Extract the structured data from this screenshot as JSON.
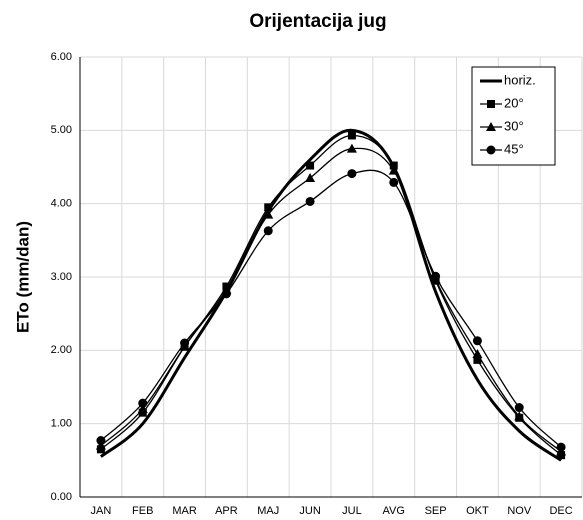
{
  "chart_data": {
    "type": "line",
    "title": "Orijentacija jug",
    "y_label": "ETo (mm/dan)",
    "categories": [
      "JAN",
      "FEB",
      "MAR",
      "APR",
      "MAJ",
      "JUN",
      "JUL",
      "AVG",
      "SEP",
      "OKT",
      "NOV",
      "DEC"
    ],
    "series": [
      {
        "name": "horiz.",
        "color": "#000000",
        "marker": "none",
        "values": [
          0.55,
          1.0,
          1.9,
          2.8,
          3.9,
          4.6,
          5.0,
          4.5,
          2.8,
          1.6,
          0.9,
          0.5
        ]
      },
      {
        "name": "20°",
        "color": "#000000",
        "marker": "square",
        "values": [
          0.65,
          1.15,
          2.05,
          2.87,
          3.95,
          4.52,
          4.93,
          4.52,
          2.95,
          1.87,
          1.08,
          0.57
        ]
      },
      {
        "name": "30°",
        "color": "#000000",
        "marker": "triangle",
        "values": [
          0.7,
          1.2,
          2.05,
          2.83,
          3.85,
          4.35,
          4.75,
          4.45,
          2.97,
          1.95,
          1.1,
          0.62
        ]
      },
      {
        "name": "45°",
        "color": "#000000",
        "marker": "circle",
        "values": [
          0.77,
          1.28,
          2.1,
          2.77,
          3.63,
          4.03,
          4.41,
          4.29,
          3.01,
          2.13,
          1.22,
          0.68
        ]
      }
    ],
    "ylim": [
      0,
      6
    ],
    "yticks": [
      {
        "value": 0,
        "label": "0.00"
      },
      {
        "value": 1,
        "label": "1.00"
      },
      {
        "value": 2,
        "label": "2.00"
      },
      {
        "value": 3,
        "label": "3.00"
      },
      {
        "value": 4,
        "label": "4.00"
      },
      {
        "value": 5,
        "label": "5.00"
      },
      {
        "value": 6,
        "label": "6.00"
      }
    ],
    "grid": true,
    "legend": "top-right"
  }
}
